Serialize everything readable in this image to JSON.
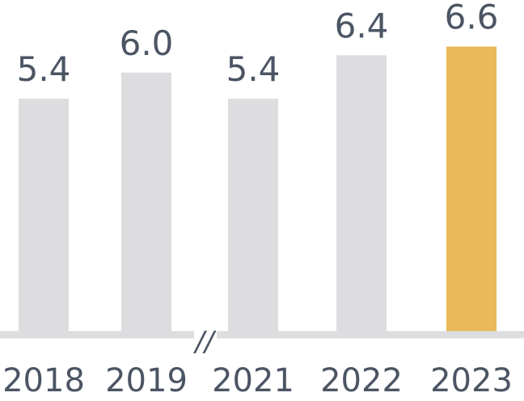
{
  "chart_data": {
    "type": "bar",
    "categories": [
      "2018",
      "2019",
      "2021",
      "2022",
      "2023"
    ],
    "values": [
      5.4,
      6.0,
      5.4,
      6.4,
      6.6
    ],
    "value_labels": [
      "5.4",
      "6.0",
      "5.4",
      "6.4",
      "6.6"
    ],
    "highlight_index": 4,
    "axis_break_label": "//",
    "axis_break_between": [
      "2019",
      "2021"
    ],
    "ylim": [
      0,
      7
    ],
    "grid": false,
    "colors": {
      "bar": "#dddde0",
      "highlight": "#e9b95a",
      "axis": "#dddde0",
      "text": "#4b5563"
    }
  }
}
